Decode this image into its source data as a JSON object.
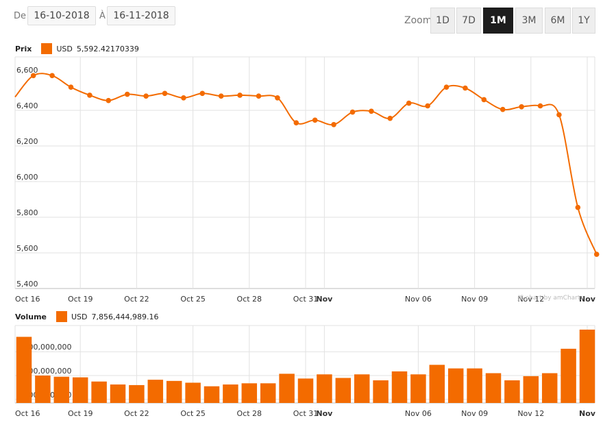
{
  "range": {
    "from_label": "De",
    "from_value": "16-10-2018",
    "to_label": "À",
    "to_value": "16-11-2018"
  },
  "zoom": {
    "label": "Zoom",
    "buttons": [
      "1D",
      "7D",
      "1M",
      "3M",
      "6M",
      "1Y"
    ],
    "active": "1M"
  },
  "credit": "JS chart by amCharts",
  "colors": {
    "series": "#f36b00",
    "grid": "#e2e2e2",
    "active_button": "#1d1d1d"
  },
  "chart_data": [
    {
      "type": "line",
      "title": "Prix",
      "legend": {
        "currency": "USD",
        "value": "5,592.42170339"
      },
      "x": [
        "2018-10-16",
        "2018-10-17",
        "2018-10-18",
        "2018-10-19",
        "2018-10-20",
        "2018-10-21",
        "2018-10-22",
        "2018-10-23",
        "2018-10-24",
        "2018-10-25",
        "2018-10-26",
        "2018-10-27",
        "2018-10-28",
        "2018-10-29",
        "2018-10-30",
        "2018-10-31",
        "2018-11-01",
        "2018-11-02",
        "2018-11-03",
        "2018-11-04",
        "2018-11-05",
        "2018-11-06",
        "2018-11-07",
        "2018-11-08",
        "2018-11-09",
        "2018-11-10",
        "2018-11-11",
        "2018-11-12",
        "2018-11-13",
        "2018-11-14",
        "2018-11-15",
        "2018-11-16"
      ],
      "values": [
        6475,
        6595,
        6595,
        6530,
        6485,
        6455,
        6490,
        6480,
        6495,
        6470,
        6495,
        6480,
        6485,
        6480,
        6470,
        6330,
        6345,
        6320,
        6390,
        6395,
        6355,
        6440,
        6425,
        6530,
        6525,
        6460,
        6405,
        6420,
        6425,
        6375,
        5855,
        5592
      ],
      "x_tick_labels": [
        "Oct 16",
        "Oct 19",
        "Oct 22",
        "Oct 25",
        "Oct 28",
        "Oct 31",
        "Nov",
        "Nov 06",
        "Nov 09",
        "Nov 12",
        "Nov"
      ],
      "y_tick_labels": [
        "6,600",
        "6,400",
        "6,200",
        "6,000",
        "5,800",
        "5,600",
        "5,400"
      ],
      "ylim": [
        5400,
        6700
      ],
      "grid": true
    },
    {
      "type": "bar",
      "title": "Volume",
      "legend": {
        "currency": "USD",
        "value": "7,856,444,989.16"
      },
      "x": [
        "2018-10-16",
        "2018-10-17",
        "2018-10-18",
        "2018-10-19",
        "2018-10-20",
        "2018-10-21",
        "2018-10-22",
        "2018-10-23",
        "2018-10-24",
        "2018-10-25",
        "2018-10-26",
        "2018-10-27",
        "2018-10-28",
        "2018-10-29",
        "2018-10-30",
        "2018-10-31",
        "2018-11-01",
        "2018-11-02",
        "2018-11-03",
        "2018-11-04",
        "2018-11-05",
        "2018-11-06",
        "2018-11-07",
        "2018-11-08",
        "2018-11-09",
        "2018-11-10",
        "2018-11-11",
        "2018-11-12",
        "2018-11-13",
        "2018-11-14",
        "2018-11-15"
      ],
      "values": [
        7250000000,
        4000000000,
        3900000000,
        3850000000,
        3500000000,
        3250000000,
        3200000000,
        3650000000,
        3550000000,
        3400000000,
        3100000000,
        3250000000,
        3350000000,
        3350000000,
        4150000000,
        3750000000,
        4100000000,
        3800000000,
        4100000000,
        3600000000,
        4350000000,
        4100000000,
        4900000000,
        4600000000,
        4600000000,
        4200000000,
        3600000000,
        3950000000,
        4200000000,
        6250000000,
        7856444989.16
      ],
      "x_tick_labels": [
        "Oct 16",
        "Oct 19",
        "Oct 22",
        "Oct 25",
        "Oct 28",
        "Oct 31",
        "Nov",
        "Nov 06",
        "Nov 09",
        "Nov 12",
        "Nov"
      ],
      "y_tick_labels": [
        "6,000,000,000",
        "4,000,000,000",
        "2,000,000,000"
      ],
      "ylim": [
        1700000000,
        8200000000
      ],
      "grid": true
    }
  ]
}
